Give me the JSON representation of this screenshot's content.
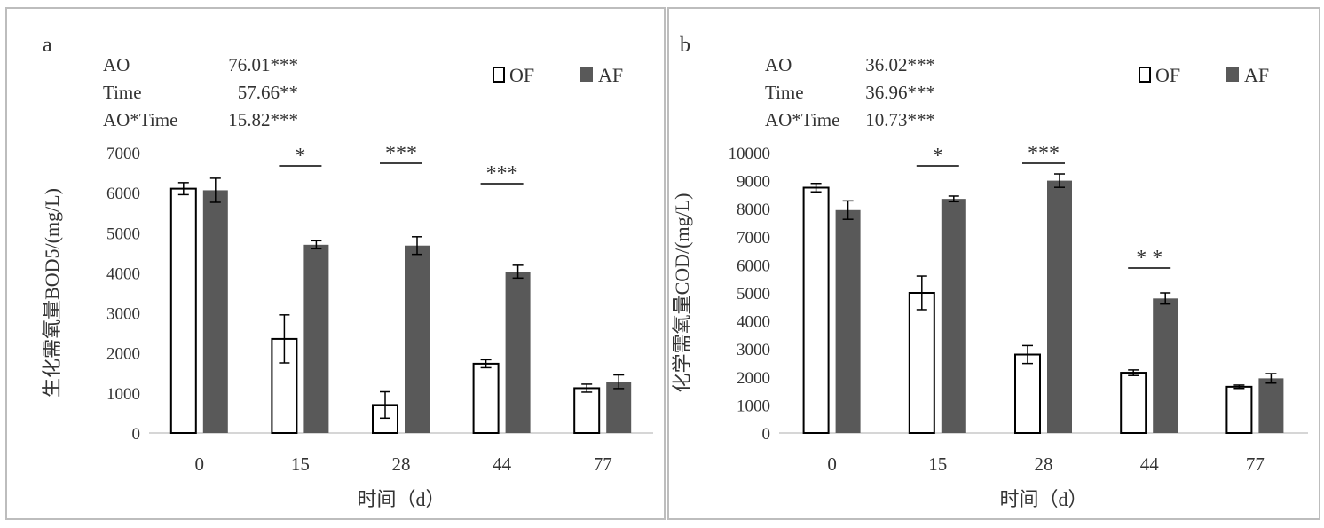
{
  "chart_data": [
    {
      "type": "bar",
      "panel_label": "a",
      "categories": [
        "0",
        "15",
        "28",
        "44",
        "77"
      ],
      "series": [
        {
          "name": "OF",
          "values": [
            6100,
            2350,
            700,
            1730,
            1120
          ],
          "errors": [
            150,
            600,
            330,
            100,
            100
          ],
          "color": "#ffffff"
        },
        {
          "name": "AF",
          "values": [
            6060,
            4700,
            4680,
            4030,
            1280
          ],
          "errors": [
            300,
            100,
            220,
            160,
            170
          ],
          "color": "#595959"
        }
      ],
      "ylabel": "生化需氧量BOD5/(mg/L)",
      "xlabel": "时间（d）",
      "ylim": [
        0,
        7000
      ],
      "yticks": [
        "0",
        "1000",
        "2000",
        "3000",
        "4000",
        "5000",
        "6000",
        "7000"
      ],
      "stats": [
        {
          "term": "AO",
          "value": "76.01***"
        },
        {
          "term": "Time",
          "value": "57.66**"
        },
        {
          "term": "AO*Time",
          "value": "15.82***"
        }
      ],
      "significance": [
        {
          "category": "15",
          "mark": "*"
        },
        {
          "category": "28",
          "mark": "***"
        },
        {
          "category": "44",
          "mark": "***"
        }
      ],
      "legend": "top-right"
    },
    {
      "type": "bar",
      "panel_label": "b",
      "categories": [
        "0",
        "15",
        "28",
        "44",
        "77"
      ],
      "series": [
        {
          "name": "OF",
          "values": [
            8750,
            5000,
            2800,
            2150,
            1650
          ],
          "errors": [
            150,
            600,
            320,
            100,
            60
          ],
          "color": "#ffffff"
        },
        {
          "name": "AF",
          "values": [
            7950,
            8350,
            9000,
            4800,
            1950
          ],
          "errors": [
            330,
            100,
            240,
            200,
            170
          ],
          "color": "#595959"
        }
      ],
      "ylabel": "化学需氧量COD/(mg/L)",
      "xlabel": "时间（d）",
      "ylim": [
        0,
        10000
      ],
      "yticks": [
        "0",
        "1000",
        "2000",
        "3000",
        "4000",
        "5000",
        "6000",
        "7000",
        "8000",
        "9000",
        "10000"
      ],
      "stats": [
        {
          "term": "AO",
          "value": "36.02***"
        },
        {
          "term": "Time",
          "value": "36.96***"
        },
        {
          "term": "AO*Time",
          "value": "10.73***"
        }
      ],
      "significance": [
        {
          "category": "15",
          "mark": "*"
        },
        {
          "category": "28",
          "mark": "***"
        },
        {
          "category": "44",
          "mark": "*  *"
        }
      ],
      "legend": "top-right"
    }
  ]
}
